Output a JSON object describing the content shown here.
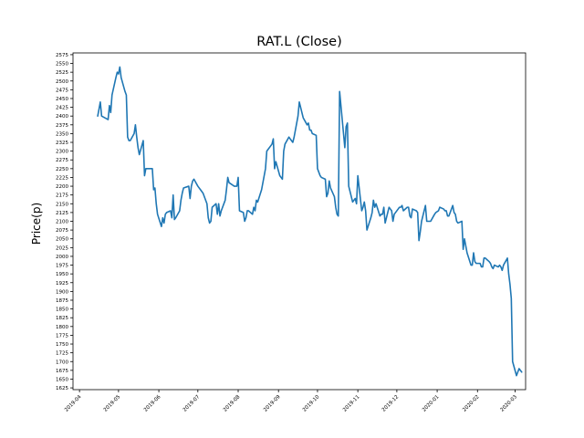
{
  "chart_data": {
    "type": "line",
    "title": "RAT.L (Close)",
    "xlabel": "",
    "ylabel": "Price(p)",
    "xlim": [
      "2019-03-27",
      "2020-03-09"
    ],
    "ylim": [
      1620,
      2580
    ],
    "line_color": "#1f77b4",
    "grid": false,
    "legend": "none",
    "x_ticks": [
      "2019-04",
      "2019-05",
      "2019-06",
      "2019-07",
      "2019-08",
      "2019-09",
      "2019-10",
      "2019-11",
      "2019-12",
      "2020-01",
      "2020-02",
      "2020-03"
    ],
    "y_ticks": [
      1625,
      1650,
      1675,
      1700,
      1725,
      1750,
      1775,
      1800,
      1825,
      1850,
      1875,
      1900,
      1925,
      1950,
      1975,
      2000,
      2025,
      2050,
      2075,
      2100,
      2125,
      2150,
      2175,
      2200,
      2225,
      2250,
      2275,
      2300,
      2325,
      2350,
      2375,
      2400,
      2425,
      2450,
      2475,
      2500,
      2525,
      2550,
      2575
    ],
    "series": [
      {
        "values": [
          [
            "2019-04-15",
            2400
          ],
          [
            "2019-04-17",
            2440
          ],
          [
            "2019-04-18",
            2400
          ],
          [
            "2019-04-23",
            2390
          ],
          [
            "2019-04-24",
            2430
          ],
          [
            "2019-04-25",
            2410
          ],
          [
            "2019-04-26",
            2460
          ],
          [
            "2019-04-29",
            2510
          ],
          [
            "2019-04-30",
            2525
          ],
          [
            "2019-05-01",
            2520
          ],
          [
            "2019-05-02",
            2540
          ],
          [
            "2019-05-03",
            2510
          ],
          [
            "2019-05-06",
            2470
          ],
          [
            "2019-05-07",
            2460
          ],
          [
            "2019-05-08",
            2340
          ],
          [
            "2019-05-09",
            2330
          ],
          [
            "2019-05-10",
            2330
          ],
          [
            "2019-05-13",
            2350
          ],
          [
            "2019-05-14",
            2375
          ],
          [
            "2019-05-15",
            2340
          ],
          [
            "2019-05-16",
            2310
          ],
          [
            "2019-05-17",
            2290
          ],
          [
            "2019-05-20",
            2330
          ],
          [
            "2019-05-21",
            2230
          ],
          [
            "2019-05-22",
            2250
          ],
          [
            "2019-05-24",
            2250
          ],
          [
            "2019-05-27",
            2250
          ],
          [
            "2019-05-28",
            2190
          ],
          [
            "2019-05-29",
            2195
          ],
          [
            "2019-05-30",
            2150
          ],
          [
            "2019-05-31",
            2120
          ],
          [
            "2019-06-03",
            2085
          ],
          [
            "2019-06-04",
            2110
          ],
          [
            "2019-06-05",
            2095
          ],
          [
            "2019-06-06",
            2120
          ],
          [
            "2019-06-07",
            2125
          ],
          [
            "2019-06-10",
            2130
          ],
          [
            "2019-06-11",
            2110
          ],
          [
            "2019-06-12",
            2175
          ],
          [
            "2019-06-13",
            2105
          ],
          [
            "2019-06-14",
            2110
          ],
          [
            "2019-06-17",
            2130
          ],
          [
            "2019-06-18",
            2160
          ],
          [
            "2019-06-19",
            2180
          ],
          [
            "2019-06-20",
            2195
          ],
          [
            "2019-06-24",
            2200
          ],
          [
            "2019-06-25",
            2165
          ],
          [
            "2019-06-26",
            2200
          ],
          [
            "2019-06-27",
            2215
          ],
          [
            "2019-06-28",
            2220
          ],
          [
            "2019-07-01",
            2200
          ],
          [
            "2019-07-03",
            2190
          ],
          [
            "2019-07-05",
            2180
          ],
          [
            "2019-07-08",
            2150
          ],
          [
            "2019-07-09",
            2110
          ],
          [
            "2019-07-10",
            2095
          ],
          [
            "2019-07-11",
            2100
          ],
          [
            "2019-07-12",
            2140
          ],
          [
            "2019-07-15",
            2150
          ],
          [
            "2019-07-16",
            2120
          ],
          [
            "2019-07-17",
            2150
          ],
          [
            "2019-07-18",
            2115
          ],
          [
            "2019-07-19",
            2130
          ],
          [
            "2019-07-22",
            2160
          ],
          [
            "2019-07-23",
            2190
          ],
          [
            "2019-07-24",
            2225
          ],
          [
            "2019-07-25",
            2210
          ],
          [
            "2019-07-29",
            2200
          ],
          [
            "2019-07-31",
            2200
          ],
          [
            "2019-08-01",
            2225
          ],
          [
            "2019-08-02",
            2130
          ],
          [
            "2019-08-05",
            2125
          ],
          [
            "2019-08-06",
            2100
          ],
          [
            "2019-08-07",
            2110
          ],
          [
            "2019-08-08",
            2130
          ],
          [
            "2019-08-09",
            2130
          ],
          [
            "2019-08-12",
            2120
          ],
          [
            "2019-08-13",
            2140
          ],
          [
            "2019-08-14",
            2130
          ],
          [
            "2019-08-15",
            2160
          ],
          [
            "2019-08-16",
            2155
          ],
          [
            "2019-08-19",
            2190
          ],
          [
            "2019-08-20",
            2210
          ],
          [
            "2019-08-22",
            2250
          ],
          [
            "2019-08-23",
            2300
          ],
          [
            "2019-08-27",
            2320
          ],
          [
            "2019-08-28",
            2335
          ],
          [
            "2019-08-29",
            2250
          ],
          [
            "2019-08-30",
            2270
          ],
          [
            "2019-09-02",
            2230
          ],
          [
            "2019-09-03",
            2225
          ],
          [
            "2019-09-04",
            2220
          ],
          [
            "2019-09-05",
            2300
          ],
          [
            "2019-09-06",
            2320
          ],
          [
            "2019-09-09",
            2340
          ],
          [
            "2019-09-10",
            2335
          ],
          [
            "2019-09-11",
            2330
          ],
          [
            "2019-09-12",
            2325
          ],
          [
            "2019-09-13",
            2340
          ],
          [
            "2019-09-16",
            2400
          ],
          [
            "2019-09-17",
            2440
          ],
          [
            "2019-09-18",
            2425
          ],
          [
            "2019-09-19",
            2410
          ],
          [
            "2019-09-20",
            2395
          ],
          [
            "2019-09-23",
            2375
          ],
          [
            "2019-09-24",
            2380
          ],
          [
            "2019-09-25",
            2360
          ],
          [
            "2019-09-26",
            2360
          ],
          [
            "2019-09-27",
            2350
          ],
          [
            "2019-09-30",
            2345
          ],
          [
            "2019-10-01",
            2250
          ],
          [
            "2019-10-02",
            2240
          ],
          [
            "2019-10-03",
            2230
          ],
          [
            "2019-10-04",
            2225
          ],
          [
            "2019-10-07",
            2220
          ],
          [
            "2019-10-08",
            2170
          ],
          [
            "2019-10-09",
            2180
          ],
          [
            "2019-10-10",
            2215
          ],
          [
            "2019-10-11",
            2195
          ],
          [
            "2019-10-14",
            2170
          ],
          [
            "2019-10-15",
            2140
          ],
          [
            "2019-10-16",
            2120
          ],
          [
            "2019-10-17",
            2115
          ],
          [
            "2019-10-18",
            2470
          ],
          [
            "2019-10-21",
            2350
          ],
          [
            "2019-10-22",
            2310
          ],
          [
            "2019-10-23",
            2370
          ],
          [
            "2019-10-24",
            2380
          ],
          [
            "2019-10-25",
            2200
          ],
          [
            "2019-10-28",
            2155
          ],
          [
            "2019-10-29",
            2160
          ],
          [
            "2019-10-30",
            2165
          ],
          [
            "2019-10-31",
            2150
          ],
          [
            "2019-11-01",
            2230
          ],
          [
            "2019-11-04",
            2130
          ],
          [
            "2019-11-05",
            2140
          ],
          [
            "2019-11-06",
            2155
          ],
          [
            "2019-11-07",
            2130
          ],
          [
            "2019-11-08",
            2075
          ],
          [
            "2019-11-11",
            2110
          ],
          [
            "2019-11-12",
            2125
          ],
          [
            "2019-11-13",
            2160
          ],
          [
            "2019-11-14",
            2140
          ],
          [
            "2019-11-15",
            2150
          ],
          [
            "2019-11-18",
            2115
          ],
          [
            "2019-11-19",
            2120
          ],
          [
            "2019-11-20",
            2120
          ],
          [
            "2019-11-21",
            2140
          ],
          [
            "2019-11-22",
            2095
          ],
          [
            "2019-11-25",
            2140
          ],
          [
            "2019-11-26",
            2135
          ],
          [
            "2019-11-27",
            2130
          ],
          [
            "2019-11-28",
            2100
          ],
          [
            "2019-11-29",
            2120
          ],
          [
            "2019-12-02",
            2135
          ],
          [
            "2019-12-03",
            2140
          ],
          [
            "2019-12-04",
            2140
          ],
          [
            "2019-12-05",
            2145
          ],
          [
            "2019-12-06",
            2130
          ],
          [
            "2019-12-09",
            2140
          ],
          [
            "2019-12-10",
            2140
          ],
          [
            "2019-12-11",
            2115
          ],
          [
            "2019-12-12",
            2110
          ],
          [
            "2019-12-13",
            2135
          ],
          [
            "2019-12-16",
            2130
          ],
          [
            "2019-12-17",
            2125
          ],
          [
            "2019-12-18",
            2045
          ],
          [
            "2019-12-19",
            2070
          ],
          [
            "2019-12-20",
            2100
          ],
          [
            "2019-12-23",
            2145
          ],
          [
            "2019-12-24",
            2100
          ],
          [
            "2019-12-27",
            2100
          ],
          [
            "2019-12-30",
            2120
          ],
          [
            "2019-12-31",
            2125
          ],
          [
            "2020-01-02",
            2130
          ],
          [
            "2020-01-03",
            2140
          ],
          [
            "2020-01-06",
            2135
          ],
          [
            "2020-01-07",
            2130
          ],
          [
            "2020-01-08",
            2130
          ],
          [
            "2020-01-09",
            2115
          ],
          [
            "2020-01-10",
            2115
          ],
          [
            "2020-01-13",
            2145
          ],
          [
            "2020-01-14",
            2125
          ],
          [
            "2020-01-15",
            2120
          ],
          [
            "2020-01-16",
            2100
          ],
          [
            "2020-01-17",
            2095
          ],
          [
            "2020-01-20",
            2100
          ],
          [
            "2020-01-21",
            2020
          ],
          [
            "2020-01-22",
            2050
          ],
          [
            "2020-01-23",
            2030
          ],
          [
            "2020-01-24",
            2010
          ],
          [
            "2020-01-27",
            1975
          ],
          [
            "2020-01-28",
            1975
          ],
          [
            "2020-01-29",
            2010
          ],
          [
            "2020-01-30",
            1985
          ],
          [
            "2020-01-31",
            1980
          ],
          [
            "2020-02-03",
            1980
          ],
          [
            "2020-02-04",
            1970
          ],
          [
            "2020-02-05",
            1970
          ],
          [
            "2020-02-06",
            1995
          ],
          [
            "2020-02-07",
            1995
          ],
          [
            "2020-02-10",
            1985
          ],
          [
            "2020-02-11",
            1980
          ],
          [
            "2020-02-12",
            1970
          ],
          [
            "2020-02-13",
            1965
          ],
          [
            "2020-02-14",
            1975
          ],
          [
            "2020-02-17",
            1970
          ],
          [
            "2020-02-18",
            1975
          ],
          [
            "2020-02-19",
            1970
          ],
          [
            "2020-02-20",
            1960
          ],
          [
            "2020-02-21",
            1975
          ],
          [
            "2020-02-24",
            1995
          ],
          [
            "2020-02-25",
            1950
          ],
          [
            "2020-02-26",
            1920
          ],
          [
            "2020-02-27",
            1880
          ],
          [
            "2020-02-28",
            1700
          ],
          [
            "2020-03-02",
            1660
          ],
          [
            "2020-03-03",
            1670
          ],
          [
            "2020-03-04",
            1680
          ],
          [
            "2020-03-06",
            1670
          ]
        ]
      }
    ]
  }
}
